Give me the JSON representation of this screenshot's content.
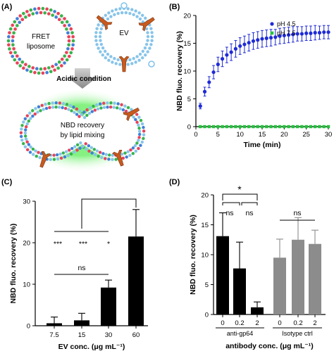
{
  "panels": {
    "A": {
      "letter": "(A)",
      "liposome_label_line1": "FRET",
      "liposome_label_line2": "liposome",
      "ev_label": "EV",
      "arrow_label": "Acidic condition",
      "fused_label_line1": "NBD recovery",
      "fused_label_line2": "by lipid mixing"
    },
    "B": {
      "letter": "(B)"
    },
    "C": {
      "letter": "(C)"
    },
    "D": {
      "letter": "(D)"
    }
  },
  "colors": {
    "blue": "#1f2bd6",
    "green": "#22c23a",
    "black": "#000000",
    "gray": "#8c8c8c",
    "orange": "#c85a1e",
    "lipid_head": "#87c4ea"
  },
  "chart_data": [
    {
      "id": "B",
      "type": "line",
      "xlabel": "Time (min)",
      "ylabel": "NBD fluo. recovery (%)",
      "xlim": [
        0,
        30
      ],
      "ylim": [
        0,
        20
      ],
      "xticks": [
        "0",
        "5",
        "10",
        "15",
        "20",
        "25",
        "30"
      ],
      "yticks": [
        "0",
        "5",
        "10",
        "15",
        "20"
      ],
      "legend_position": "top-right",
      "series": [
        {
          "name": "pH 4.5",
          "color": "#1f2bd6",
          "marker": "circle",
          "x": [
            1,
            2,
            3,
            4,
            5,
            6,
            7,
            8,
            9,
            10,
            11,
            12,
            13,
            14,
            15,
            16,
            17,
            18,
            19,
            20,
            21,
            22,
            23,
            24,
            25,
            26,
            27,
            28,
            29,
            30
          ],
          "y": [
            3.7,
            6.3,
            8.0,
            9.8,
            11.2,
            12.2,
            12.9,
            13.4,
            14.0,
            14.5,
            14.8,
            15.1,
            15.4,
            15.6,
            15.8,
            15.9,
            16.0,
            16.1,
            16.3,
            16.4,
            16.5,
            16.6,
            16.7,
            16.7,
            16.8,
            16.8,
            16.9,
            16.9,
            17.0,
            17.0
          ],
          "err": [
            0.5,
            0.8,
            1.0,
            1.2,
            1.3,
            1.4,
            1.4,
            1.5,
            1.5,
            1.5,
            1.5,
            1.5,
            1.5,
            1.5,
            1.5,
            1.5,
            1.5,
            1.4,
            1.4,
            1.4,
            1.4,
            1.4,
            1.3,
            1.3,
            1.3,
            1.3,
            1.3,
            1.2,
            1.2,
            1.2
          ]
        },
        {
          "name": "pH 7.5",
          "color": "#22c23a",
          "marker": "square",
          "x": [
            1,
            2,
            3,
            4,
            5,
            6,
            7,
            8,
            9,
            10,
            11,
            12,
            13,
            14,
            15,
            16,
            17,
            18,
            19,
            20,
            21,
            22,
            23,
            24,
            25,
            26,
            27,
            28,
            29,
            30
          ],
          "y": [
            0,
            0,
            0,
            0,
            0,
            0,
            0,
            0,
            0,
            0,
            0,
            0,
            0,
            0,
            0,
            0,
            0,
            0,
            0,
            0,
            0,
            0,
            0,
            0,
            0,
            0,
            0,
            0,
            0,
            0
          ]
        }
      ]
    },
    {
      "id": "C",
      "type": "bar",
      "xlabel": "EV conc. (μg mL⁻¹)",
      "ylabel": "NBD fluo. recovery (%)",
      "ylim": [
        0,
        30
      ],
      "yticks": [
        "0",
        "10",
        "20",
        "30"
      ],
      "categories": [
        "7.5",
        "15",
        "30",
        "60"
      ],
      "values": [
        0.6,
        1.3,
        9.2,
        21.5
      ],
      "errors": [
        1.5,
        1.7,
        1.8,
        6.5
      ],
      "color": "#000000",
      "annotations": {
        "star_30": "*",
        "star_15": "***",
        "star_75": "***",
        "ns": "ns"
      }
    },
    {
      "id": "D",
      "type": "bar",
      "xlabel": "antibody conc. (μg mL⁻¹)",
      "ylabel": "NBD fluo. recovery (%)",
      "ylim": [
        0,
        20
      ],
      "yticks": [
        "0",
        "5",
        "10",
        "15",
        "20"
      ],
      "groups": [
        {
          "name": "anti-gp64",
          "color": "#000000",
          "categories": [
            "0",
            "0.2",
            "2"
          ],
          "values": [
            13.1,
            7.7,
            1.2
          ],
          "errors": [
            3.9,
            4.4,
            0.9
          ]
        },
        {
          "name": "Isotype ctrl",
          "color": "#8c8c8c",
          "categories": [
            "0",
            "0.2",
            "2"
          ],
          "values": [
            9.5,
            12.5,
            11.8
          ],
          "errors": [
            3.1,
            3.7,
            2.3
          ]
        }
      ],
      "annotations": {
        "star": "*",
        "ns_a": "ns",
        "ns_b": "ns",
        "ns_iso": "ns"
      }
    }
  ]
}
